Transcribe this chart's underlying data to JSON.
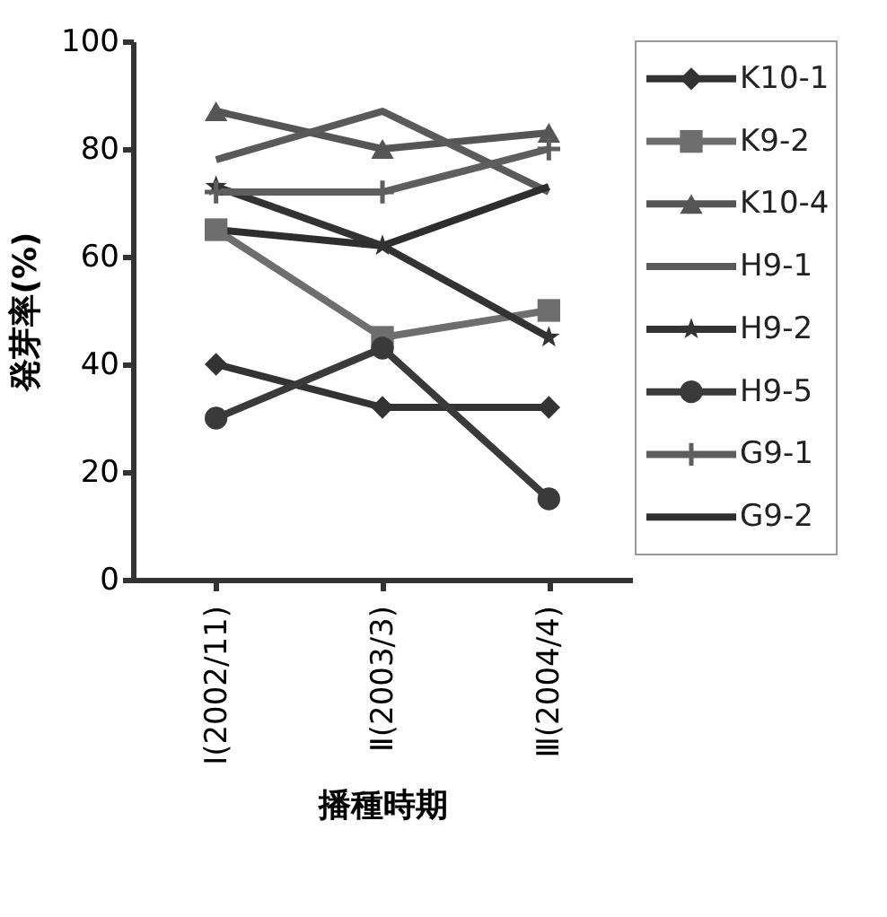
{
  "chart_data": {
    "type": "line",
    "xlabel": "播種時期",
    "ylabel": "発芽率(%)",
    "categories": [
      "Ⅰ(2002/11)",
      "Ⅱ(2003/3)",
      "Ⅲ(2004/4)"
    ],
    "ylim": [
      0,
      100
    ],
    "yticks": [
      0,
      20,
      40,
      60,
      80,
      100
    ],
    "grid": false,
    "legend": "right",
    "series": [
      {
        "name": "K10-1",
        "color": "#333333",
        "marker": "diamond",
        "values": [
          40,
          32,
          32
        ]
      },
      {
        "name": "K9-2",
        "color": "#6e6e6e",
        "marker": "square",
        "values": [
          65,
          45,
          50
        ]
      },
      {
        "name": "K10-4",
        "color": "#555555",
        "marker": "triangle",
        "values": [
          87,
          80,
          83
        ]
      },
      {
        "name": "H9-1",
        "color": "#5a5a5a",
        "marker": "none",
        "values": [
          78,
          87,
          72
        ]
      },
      {
        "name": "H9-2",
        "color": "#333333",
        "marker": "star",
        "values": [
          73,
          62,
          45
        ]
      },
      {
        "name": "H9-5",
        "color": "#3a3a3a",
        "marker": "circle",
        "values": [
          30,
          43,
          15
        ]
      },
      {
        "name": "G9-1",
        "color": "#5e5e5e",
        "marker": "cross",
        "values": [
          72,
          72,
          80
        ]
      },
      {
        "name": "G9-2",
        "color": "#2e2e2e",
        "marker": "none",
        "values": [
          65,
          62,
          73
        ]
      }
    ]
  }
}
